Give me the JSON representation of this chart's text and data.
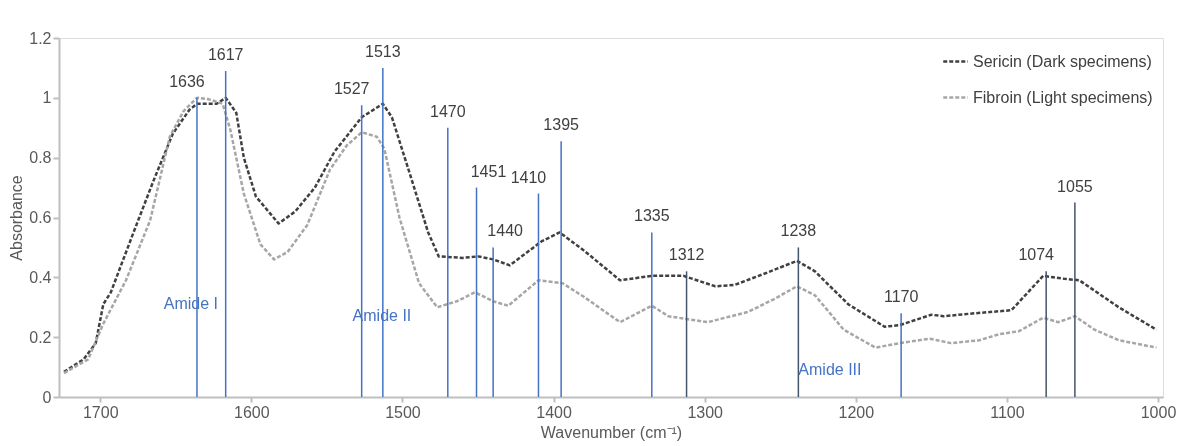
{
  "chart_data": {
    "type": "line",
    "xlabel": "Wavenumber (cm⁻¹)",
    "ylabel": "Absorbance",
    "xlim": [
      1724,
      1000
    ],
    "xticks": [
      1700,
      1600,
      1500,
      1400,
      1300,
      1200,
      1100,
      1000
    ],
    "ylim": [
      0,
      1.2
    ],
    "yticks": [
      0,
      0.2,
      0.4,
      0.6,
      0.8,
      1,
      1.2
    ],
    "grid": false,
    "legend": "top right",
    "line_style": "dashed",
    "series": [
      {
        "name": "Sericin (Dark specimens)",
        "color": "#404040",
        "x": [
          1724,
          1711,
          1703,
          1698,
          1693,
          1678,
          1665,
          1652,
          1641,
          1636,
          1623,
          1617,
          1610,
          1605,
          1597,
          1582,
          1571,
          1558,
          1545,
          1527,
          1513,
          1507,
          1496,
          1483,
          1476,
          1460,
          1450,
          1440,
          1429,
          1408,
          1396,
          1380,
          1356,
          1335,
          1314,
          1293,
          1280,
          1259,
          1239,
          1227,
          1205,
          1181,
          1171,
          1150,
          1142,
          1121,
          1097,
          1076,
          1062,
          1052,
          1026,
          1001
        ],
        "values": [
          0.084,
          0.126,
          0.18,
          0.31,
          0.35,
          0.55,
          0.72,
          0.88,
          0.96,
          0.98,
          0.98,
          1.0,
          0.95,
          0.8,
          0.67,
          0.58,
          0.62,
          0.7,
          0.82,
          0.935,
          0.98,
          0.935,
          0.76,
          0.55,
          0.47,
          0.465,
          0.47,
          0.46,
          0.44,
          0.52,
          0.55,
          0.49,
          0.39,
          0.405,
          0.405,
          0.37,
          0.375,
          0.415,
          0.455,
          0.42,
          0.31,
          0.235,
          0.24,
          0.275,
          0.27,
          0.28,
          0.29,
          0.405,
          0.395,
          0.39,
          0.3,
          0.225
        ]
      },
      {
        "name": "Fibroin (Light specimens)",
        "color": "#a6a6a6",
        "x": [
          1724,
          1708,
          1698,
          1683,
          1667,
          1654,
          1645,
          1636,
          1628,
          1619,
          1614,
          1605,
          1594,
          1585,
          1576,
          1563,
          1548,
          1537,
          1527,
          1517,
          1512,
          1502,
          1489,
          1477,
          1464,
          1452,
          1440,
          1430,
          1410,
          1394,
          1380,
          1356,
          1335,
          1324,
          1298,
          1271,
          1253,
          1239,
          1227,
          1208,
          1187,
          1171,
          1151,
          1137,
          1118,
          1105,
          1092,
          1076,
          1066,
          1055,
          1042,
          1026,
          1001
        ],
        "values": [
          0.08,
          0.126,
          0.245,
          0.39,
          0.59,
          0.87,
          0.955,
          1.0,
          0.995,
          0.98,
          0.895,
          0.68,
          0.51,
          0.46,
          0.485,
          0.575,
          0.76,
          0.84,
          0.885,
          0.87,
          0.83,
          0.6,
          0.38,
          0.3,
          0.32,
          0.35,
          0.32,
          0.305,
          0.39,
          0.38,
          0.335,
          0.25,
          0.305,
          0.27,
          0.25,
          0.285,
          0.33,
          0.37,
          0.34,
          0.225,
          0.165,
          0.18,
          0.195,
          0.18,
          0.19,
          0.21,
          0.22,
          0.265,
          0.25,
          0.27,
          0.225,
          0.19,
          0.165
        ]
      },
      {
        "type": "bar",
        "x": [
          1636,
          1617,
          1527,
          1513,
          1470,
          1451,
          1440,
          1410,
          1395,
          1335,
          1312,
          1238,
          1170,
          1074,
          1055
        ],
        "values": [
          1.0,
          1.09,
          0.975,
          1.1,
          0.9,
          0.7,
          0.5,
          0.68,
          0.855,
          0.55,
          0.42,
          0.5,
          0.28,
          0.42,
          0.65
        ],
        "colors": [
          "#4472c4",
          "#4472c4",
          "#4472c4",
          "#4472c4",
          "#4472c4",
          "#4472c4",
          "#4472c4",
          "#4472c4",
          "#4472c4",
          "#4472c4",
          "#44546a",
          "#44546a",
          "#4472c4",
          "#44546a",
          "#44546a"
        ]
      }
    ],
    "annotations": [
      "Amide I",
      "Amide II",
      "Amide III",
      {
        "text": "1636",
        "x": 1636,
        "y": 1.0
      },
      {
        "text": "1617",
        "x": 1617,
        "y": 1.09
      },
      {
        "text": "1527",
        "x": 1527,
        "y": 0.975
      },
      {
        "text": "1513",
        "x": 1513,
        "y": 1.1
      },
      {
        "text": "1470",
        "x": 1470,
        "y": 0.9
      },
      {
        "text": "1451",
        "x": 1451,
        "y": 0.7
      },
      {
        "text": "1440",
        "x": 1440,
        "y": 0.5
      },
      {
        "text": "1410",
        "x": 1410,
        "y": 0.68
      },
      {
        "text": "1395",
        "x": 1395,
        "y": 0.855
      },
      {
        "text": "1335",
        "x": 1335,
        "y": 0.55
      },
      {
        "text": "1312",
        "x": 1312,
        "y": 0.42
      },
      {
        "text": "1238",
        "x": 1238,
        "y": 0.5
      },
      {
        "text": "1170",
        "x": 1170,
        "y": 0.28
      },
      {
        "text": "1074",
        "x": 1074,
        "y": 0.42
      },
      {
        "text": "1055",
        "x": 1055,
        "y": 0.65
      }
    ]
  }
}
